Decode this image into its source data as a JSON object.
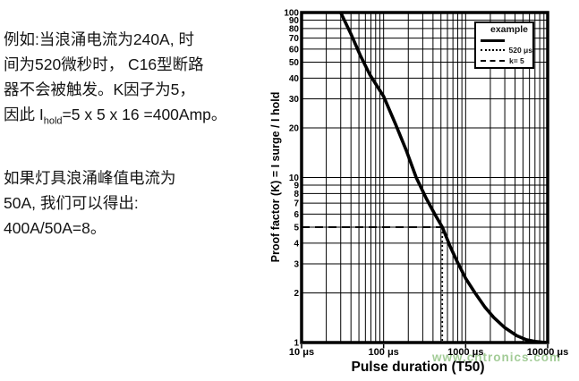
{
  "left_text": {
    "p1_lines": [
      "例如:当浪涌电流为240A, 时",
      "间为520微秒时， C16型断路",
      "器不会被触发。K因子为5，"
    ],
    "p1_line4": {
      "prefix": "因此 I",
      "sub": "hold",
      "suffix": "=5 x 5 x 16 =400Amp。"
    },
    "p2_lines": [
      "如果灯具浪涌峰值电流为",
      "50A, 我们可以得出:",
      "400A/50A=8。"
    ]
  },
  "watermark": {
    "text": "www.cntronics.com",
    "color": "#a3cc97"
  },
  "colors": {
    "curve": "#000000",
    "grid": "#000000",
    "text": "#141414",
    "background": "#ffffff"
  },
  "chart_data": {
    "type": "line",
    "title": "",
    "xlabel": "Pulse duration (T50)",
    "ylabel": "Proof factor (K) = I surge / I hold",
    "x_scale": "log",
    "y_scale": "log",
    "xlim": [
      10,
      10000
    ],
    "ylim": [
      1,
      100
    ],
    "grid": "on (log major + minor lines)",
    "x_ticks": [
      {
        "v": 10,
        "label": "10 μs"
      },
      {
        "v": 100,
        "label": "100 μs"
      },
      {
        "v": 1000,
        "label": "1000 μs"
      },
      {
        "v": 10000,
        "label": "10000 μs"
      }
    ],
    "y_ticks": [
      {
        "v": 1,
        "label": "1"
      },
      {
        "v": 2,
        "label": "2"
      },
      {
        "v": 3,
        "label": "3"
      },
      {
        "v": 4,
        "label": "4"
      },
      {
        "v": 5,
        "label": "5"
      },
      {
        "v": 6,
        "label": "6"
      },
      {
        "v": 7,
        "label": "7"
      },
      {
        "v": 8,
        "label": "8"
      },
      {
        "v": 9,
        "label": "9"
      },
      {
        "v": 10,
        "label": "10"
      },
      {
        "v": 20,
        "label": "20"
      },
      {
        "v": 30,
        "label": "30"
      },
      {
        "v": 40,
        "label": "40"
      },
      {
        "v": 50,
        "label": "50"
      },
      {
        "v": 60,
        "label": "60"
      },
      {
        "v": 70,
        "label": "70"
      },
      {
        "v": 80,
        "label": "80"
      },
      {
        "v": 90,
        "label": "90"
      },
      {
        "v": 100,
        "label": "100"
      }
    ],
    "legend": {
      "position": "top-right",
      "title": "example",
      "items": [
        {
          "style": "solid",
          "label": ""
        },
        {
          "style": "dotted",
          "label": "520 μs"
        },
        {
          "style": "dashed",
          "label": "k= 5"
        }
      ]
    },
    "series": [
      {
        "name": "example",
        "style": "solid",
        "points": [
          [
            30,
            100
          ],
          [
            40,
            74
          ],
          [
            52,
            55
          ],
          [
            68,
            42
          ],
          [
            100,
            31
          ],
          [
            140,
            21
          ],
          [
            190,
            14.5
          ],
          [
            250,
            10
          ],
          [
            330,
            7.5
          ],
          [
            420,
            6
          ],
          [
            520,
            5
          ],
          [
            650,
            3.8
          ],
          [
            800,
            3.05
          ],
          [
            1000,
            2.45
          ],
          [
            1300,
            2
          ],
          [
            1700,
            1.65
          ],
          [
            2200,
            1.42
          ],
          [
            3000,
            1.23
          ],
          [
            4200,
            1.1
          ],
          [
            5500,
            1.04
          ],
          [
            7000,
            1.015
          ],
          [
            9500,
            1
          ]
        ]
      },
      {
        "name": "520 μs",
        "style": "dotted",
        "points": [
          [
            520,
            5
          ],
          [
            520,
            1
          ]
        ]
      },
      {
        "name": "k= 5",
        "style": "dashed",
        "points": [
          [
            10,
            5
          ],
          [
            520,
            5
          ]
        ]
      }
    ]
  }
}
